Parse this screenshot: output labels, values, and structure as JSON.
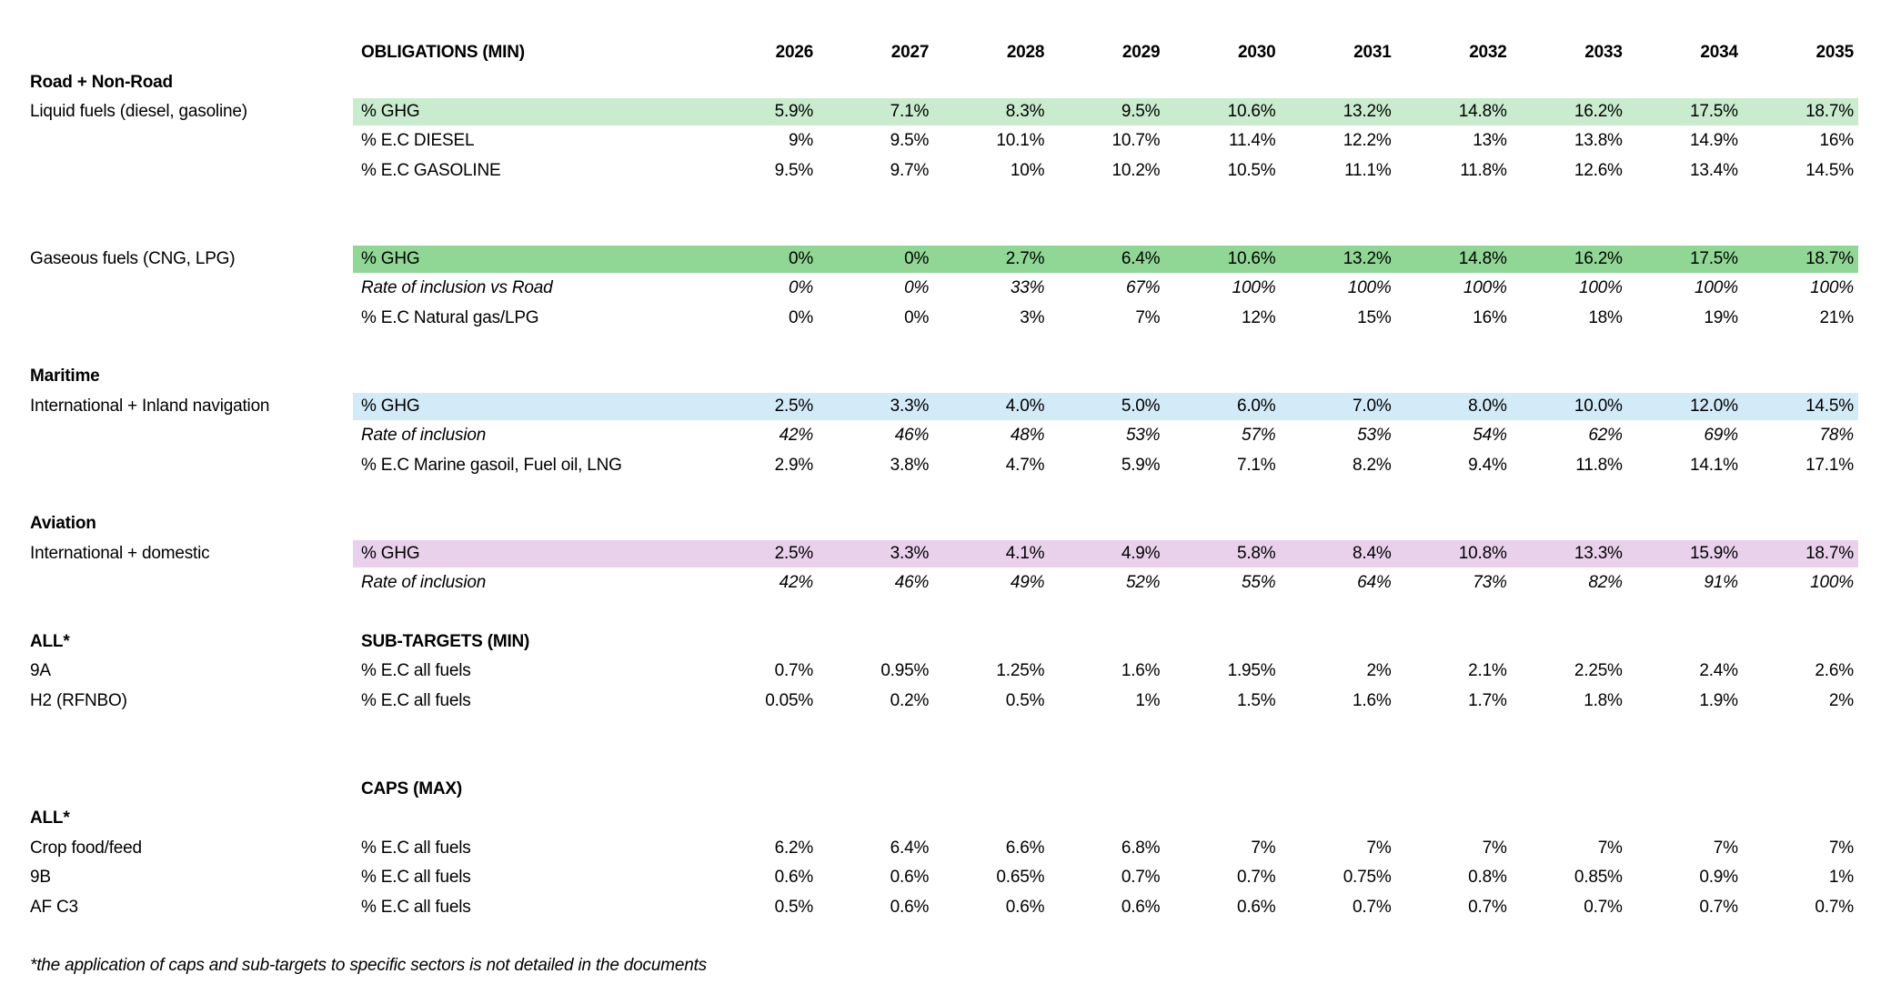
{
  "colors": {
    "light_green": "#c9ecce",
    "green": "#90d795",
    "blue": "#d3eaf8",
    "pink": "#e9d1ec",
    "text": "#000000",
    "background": "#ffffff"
  },
  "chart_data": {
    "type": "table",
    "title": "",
    "header": {
      "obligations_label": "OBLIGATIONS (MIN)",
      "years": [
        "2026",
        "2027",
        "2028",
        "2029",
        "2030",
        "2031",
        "2032",
        "2033",
        "2034",
        "2035"
      ]
    },
    "sections": [
      {
        "name": "Road + Non-Road",
        "rows": [
          {
            "label": "Road + Non-Road",
            "label_bold": true
          },
          {
            "label": "Liquid fuels (diesel, gasoline)",
            "metric": "% GHG",
            "highlight": "light_green",
            "values": [
              "5.9%",
              "7.1%",
              "8.3%",
              "9.5%",
              "10.6%",
              "13.2%",
              "14.8%",
              "16.2%",
              "17.5%",
              "18.7%"
            ]
          },
          {
            "metric": "% E.C DIESEL",
            "values": [
              "9%",
              "9.5%",
              "10.1%",
              "10.7%",
              "11.4%",
              "12.2%",
              "13%",
              "13.8%",
              "14.9%",
              "16%"
            ]
          },
          {
            "metric": "% E.C GASOLINE",
            "values": [
              "9.5%",
              "9.7%",
              "10%",
              "10.2%",
              "10.5%",
              "11.1%",
              "11.8%",
              "12.6%",
              "13.4%",
              "14.5%"
            ]
          },
          {
            "blank": true
          },
          {
            "blank": true
          }
        ]
      },
      {
        "name": "Gaseous fuels",
        "rows": [
          {
            "label": "Gaseous fuels (CNG, LPG)",
            "metric": "% GHG",
            "highlight": "green",
            "values": [
              "0%",
              "0%",
              "2.7%",
              "6.4%",
              "10.6%",
              "13.2%",
              "14.8%",
              "16.2%",
              "17.5%",
              "18.7%"
            ]
          },
          {
            "metric": "Rate of inclusion vs Road",
            "italic": true,
            "values": [
              "0%",
              "0%",
              "33%",
              "67%",
              "100%",
              "100%",
              "100%",
              "100%",
              "100%",
              "100%"
            ]
          },
          {
            "metric": "% E.C Natural gas/LPG",
            "values": [
              "0%",
              "0%",
              "3%",
              "7%",
              "12%",
              "15%",
              "16%",
              "18%",
              "19%",
              "21%"
            ]
          },
          {
            "blank": true
          }
        ]
      },
      {
        "name": "Maritime",
        "rows": [
          {
            "label": "Maritime",
            "label_bold": true
          },
          {
            "label": "International + Inland navigation",
            "metric": "% GHG",
            "highlight": "blue",
            "values": [
              "2.5%",
              "3.3%",
              "4.0%",
              "5.0%",
              "6.0%",
              "7.0%",
              "8.0%",
              "10.0%",
              "12.0%",
              "14.5%"
            ]
          },
          {
            "metric": "Rate of inclusion",
            "italic": true,
            "values": [
              "42%",
              "46%",
              "48%",
              "53%",
              "57%",
              "53%",
              "54%",
              "62%",
              "69%",
              "78%"
            ]
          },
          {
            "metric": "% E.C Marine gasoil, Fuel oil, LNG",
            "values": [
              "2.9%",
              "3.8%",
              "4.7%",
              "5.9%",
              "7.1%",
              "8.2%",
              "9.4%",
              "11.8%",
              "14.1%",
              "17.1%"
            ]
          },
          {
            "blank": true
          }
        ]
      },
      {
        "name": "Aviation",
        "rows": [
          {
            "label": "Aviation",
            "label_bold": true
          },
          {
            "label": "International + domestic",
            "metric": "% GHG",
            "highlight": "pink",
            "values": [
              "2.5%",
              "3.3%",
              "4.1%",
              "4.9%",
              "5.8%",
              "8.4%",
              "10.8%",
              "13.3%",
              "15.9%",
              "18.7%"
            ]
          },
          {
            "metric": "Rate of inclusion",
            "italic": true,
            "values": [
              "42%",
              "46%",
              "49%",
              "52%",
              "55%",
              "64%",
              "73%",
              "82%",
              "91%",
              "100%"
            ]
          },
          {
            "blank": true
          }
        ]
      },
      {
        "name": "Sub-targets",
        "rows": [
          {
            "label": "ALL*",
            "label_bold": true,
            "metric": "SUB-TARGETS (MIN)",
            "metric_bold": true
          },
          {
            "label": "9A",
            "metric": "% E.C all fuels",
            "values": [
              "0.7%",
              "0.95%",
              "1.25%",
              "1.6%",
              "1.95%",
              "2%",
              "2.1%",
              "2.25%",
              "2.4%",
              "2.6%"
            ]
          },
          {
            "label": "H2 (RFNBO)",
            "metric": "% E.C all fuels",
            "values": [
              "0.05%",
              "0.2%",
              "0.5%",
              "1%",
              "1.5%",
              "1.6%",
              "1.7%",
              "1.8%",
              "1.9%",
              "2%"
            ]
          },
          {
            "blank": true
          },
          {
            "blank": true
          }
        ]
      },
      {
        "name": "Caps",
        "rows": [
          {
            "metric": "CAPS (MAX)",
            "metric_bold": true
          },
          {
            "label": "ALL*",
            "label_bold": true
          },
          {
            "label": "Crop food/feed",
            "metric": "% E.C all fuels",
            "values": [
              "6.2%",
              "6.4%",
              "6.6%",
              "6.8%",
              "7%",
              "7%",
              "7%",
              "7%",
              "7%",
              "7%"
            ]
          },
          {
            "label": "9B",
            "metric": "% E.C all fuels",
            "values": [
              "0.6%",
              "0.6%",
              "0.65%",
              "0.7%",
              "0.7%",
              "0.75%",
              "0.8%",
              "0.85%",
              "0.9%",
              "1%"
            ]
          },
          {
            "label": "AF C3",
            "metric": "% E.C all fuels",
            "values": [
              "0.5%",
              "0.6%",
              "0.6%",
              "0.6%",
              "0.6%",
              "0.7%",
              "0.7%",
              "0.7%",
              "0.7%",
              "0.7%"
            ]
          },
          {
            "blank": true
          }
        ]
      }
    ],
    "footnote": "*the application of caps and sub-targets to specific sectors is not detailed in the documents"
  }
}
